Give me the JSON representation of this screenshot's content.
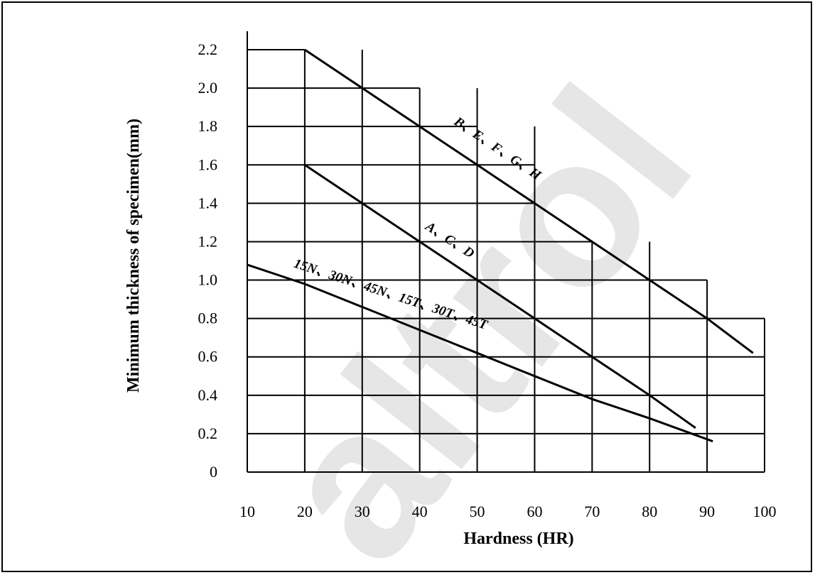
{
  "chart_data": {
    "type": "line",
    "xlabel": "Hardness (HR)",
    "ylabel": "Minimum thickness of specimen(mm)",
    "xlim": [
      10,
      100
    ],
    "ylim": [
      0,
      2.2
    ],
    "x_ticks": [
      "10",
      "20",
      "30",
      "40",
      "50",
      "60",
      "70",
      "80",
      "90",
      "100"
    ],
    "y_ticks": [
      "0",
      "0.2",
      "0.4",
      "0.6",
      "0.8",
      "1.0",
      "1.2",
      "1.4",
      "1.6",
      "1.8",
      "2.0",
      "2.2"
    ],
    "grid": true,
    "series": [
      {
        "name": "B、E、F、G、H",
        "points": [
          [
            20,
            2.2
          ],
          [
            30,
            2.0
          ],
          [
            40,
            1.8
          ],
          [
            50,
            1.6
          ],
          [
            60,
            1.4
          ],
          [
            70,
            1.2
          ],
          [
            80,
            1.0
          ],
          [
            90,
            0.8
          ],
          [
            98,
            0.62
          ]
        ]
      },
      {
        "name": "A、C、D",
        "points": [
          [
            20,
            1.6
          ],
          [
            30,
            1.4
          ],
          [
            40,
            1.2
          ],
          [
            50,
            1.0
          ],
          [
            60,
            0.8
          ],
          [
            70,
            0.6
          ],
          [
            80,
            0.4
          ],
          [
            88,
            0.23
          ]
        ]
      },
      {
        "name": "15N、30N、45N、15T、30T、45T",
        "points": [
          [
            10,
            1.08
          ],
          [
            20,
            0.98
          ],
          [
            30,
            0.86
          ],
          [
            40,
            0.74
          ],
          [
            50,
            0.62
          ],
          [
            60,
            0.5
          ],
          [
            70,
            0.38
          ],
          [
            80,
            0.28
          ],
          [
            91,
            0.16
          ]
        ]
      }
    ]
  },
  "watermark": "altrol"
}
